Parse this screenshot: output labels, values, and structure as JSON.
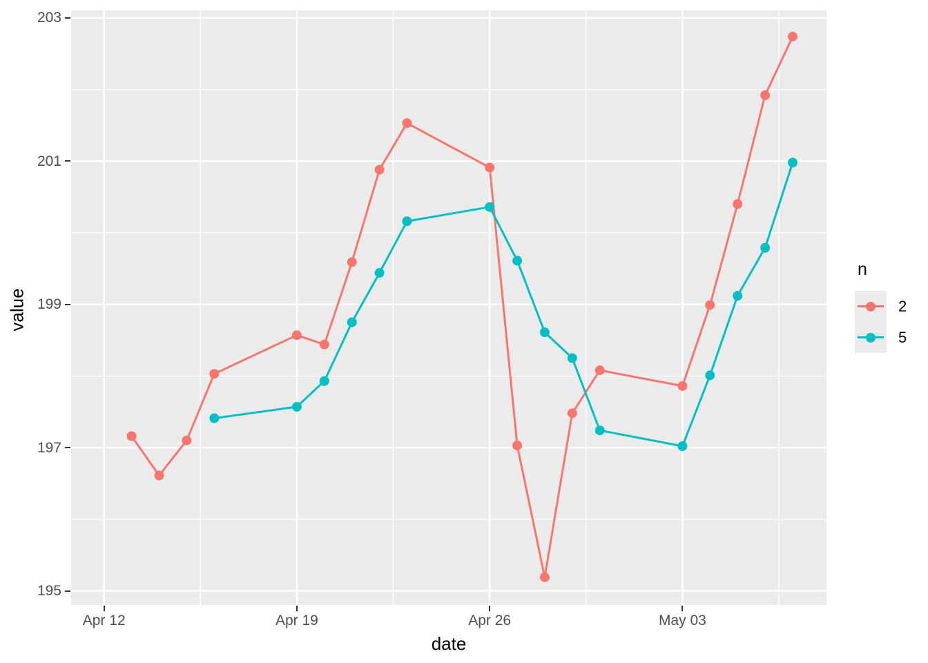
{
  "figure": {
    "background": "#FFFFFF",
    "panel_bg": "#EBEBEB",
    "grid_color": "#FFFFFF",
    "tick_color": "#333333",
    "tick_label_color": "#4D4D4D",
    "axis_title_color": "#000000"
  },
  "axes": {
    "x_title": "date",
    "y_title": "value"
  },
  "legend": {
    "title": "n",
    "entries": [
      {
        "label": "2",
        "color": "#F8766D"
      },
      {
        "label": "5",
        "color": "#00BFC4"
      }
    ]
  },
  "chart_data": {
    "type": "line",
    "title": "",
    "xlabel": "date",
    "ylabel": "value",
    "ylim": [
      194.85,
      203.05
    ],
    "grid": true,
    "legend_position": "right",
    "legend_title": "n",
    "x_axis": {
      "tick_labels": [
        "Apr 12",
        "Apr 19",
        "Apr 26",
        "May 03"
      ],
      "tick_days": [
        0,
        7,
        14,
        21
      ],
      "minor_days": [
        3.5,
        10.5,
        17.5,
        24.5
      ]
    },
    "y_axis": {
      "ticks": [
        195,
        197,
        199,
        201,
        203
      ],
      "minor": [
        196,
        198,
        200,
        202
      ]
    },
    "series": [
      {
        "name": "2",
        "color": "#F8766D",
        "points": [
          {
            "date": "Apr 13",
            "day": 1,
            "value": 197.16
          },
          {
            "date": "Apr 14",
            "day": 2,
            "value": 196.61
          },
          {
            "date": "Apr 15",
            "day": 3,
            "value": 197.1
          },
          {
            "date": "Apr 16",
            "day": 4,
            "value": 198.03
          },
          {
            "date": "Apr 19",
            "day": 7,
            "value": 198.57
          },
          {
            "date": "Apr 20",
            "day": 8,
            "value": 198.44
          },
          {
            "date": "Apr 21",
            "day": 9,
            "value": 199.59
          },
          {
            "date": "Apr 22",
            "day": 10,
            "value": 200.88
          },
          {
            "date": "Apr 23",
            "day": 11,
            "value": 201.53
          },
          {
            "date": "Apr 26",
            "day": 14,
            "value": 200.91
          },
          {
            "date": "Apr 27",
            "day": 15,
            "value": 197.03
          },
          {
            "date": "Apr 28",
            "day": 16,
            "value": 195.19
          },
          {
            "date": "Apr 29",
            "day": 17,
            "value": 197.48
          },
          {
            "date": "Apr 30",
            "day": 18,
            "value": 198.08
          },
          {
            "date": "May 03",
            "day": 21,
            "value": 197.86
          },
          {
            "date": "May 04",
            "day": 22,
            "value": 198.99
          },
          {
            "date": "May 05",
            "day": 23,
            "value": 200.4
          },
          {
            "date": "May 06",
            "day": 24,
            "value": 201.92
          },
          {
            "date": "May 07",
            "day": 25,
            "value": 202.74
          }
        ]
      },
      {
        "name": "5",
        "color": "#00BFC4",
        "points": [
          {
            "date": "Apr 16",
            "day": 4,
            "value": 197.41
          },
          {
            "date": "Apr 19",
            "day": 7,
            "value": 197.57
          },
          {
            "date": "Apr 20",
            "day": 8,
            "value": 197.93
          },
          {
            "date": "Apr 21",
            "day": 9,
            "value": 198.75
          },
          {
            "date": "Apr 22",
            "day": 10,
            "value": 199.44
          },
          {
            "date": "Apr 23",
            "day": 11,
            "value": 200.16
          },
          {
            "date": "Apr 26",
            "day": 14,
            "value": 200.36
          },
          {
            "date": "Apr 27",
            "day": 15,
            "value": 199.61
          },
          {
            "date": "Apr 28",
            "day": 16,
            "value": 198.61
          },
          {
            "date": "Apr 29",
            "day": 17,
            "value": 198.25
          },
          {
            "date": "Apr 30",
            "day": 18,
            "value": 197.24
          },
          {
            "date": "May 03",
            "day": 21,
            "value": 197.02
          },
          {
            "date": "May 04",
            "day": 22,
            "value": 198.01
          },
          {
            "date": "May 05",
            "day": 23,
            "value": 199.12
          },
          {
            "date": "May 06",
            "day": 24,
            "value": 199.79
          },
          {
            "date": "May 07",
            "day": 25,
            "value": 200.98
          }
        ]
      }
    ]
  }
}
